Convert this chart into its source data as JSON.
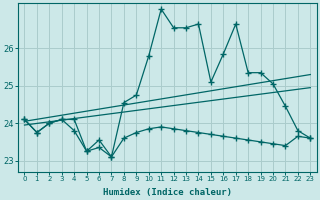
{
  "xlabel": "Humidex (Indice chaleur)",
  "background_color": "#cce8e8",
  "grid_color": "#aacccc",
  "line_color": "#006666",
  "xlim": [
    -0.5,
    23.5
  ],
  "ylim": [
    22.7,
    27.2
  ],
  "yticks": [
    23,
    24,
    25,
    26
  ],
  "xticks": [
    0,
    1,
    2,
    3,
    4,
    5,
    6,
    7,
    8,
    9,
    10,
    11,
    12,
    13,
    14,
    15,
    16,
    17,
    18,
    19,
    20,
    21,
    22,
    23
  ],
  "series1": [
    24.1,
    23.75,
    24.0,
    24.1,
    24.1,
    23.25,
    23.35,
    23.1,
    24.55,
    24.75,
    25.8,
    27.05,
    26.55,
    26.55,
    26.65,
    25.1,
    25.85,
    26.65,
    25.35,
    25.35,
    25.05,
    24.45,
    23.8,
    23.6
  ],
  "series2_x": [
    0,
    23
  ],
  "series2_y": [
    24.05,
    25.3
  ],
  "series3_x": [
    0,
    23
  ],
  "series3_y": [
    23.95,
    24.95
  ],
  "series4": [
    24.1,
    23.75,
    24.0,
    24.1,
    23.8,
    23.25,
    23.55,
    23.1,
    23.6,
    23.75,
    23.85,
    23.9,
    23.85,
    23.8,
    23.75,
    23.7,
    23.65,
    23.6,
    23.55,
    23.5,
    23.45,
    23.4,
    23.65,
    23.6
  ]
}
